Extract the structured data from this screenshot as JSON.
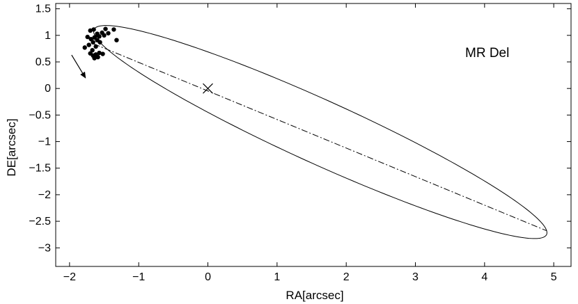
{
  "chart_data": {
    "type": "scatter",
    "annotation": "MR Del",
    "xlabel": "RA[arcsec]",
    "ylabel": "DE[arcsec]",
    "xlim": [
      -2.2,
      5.25
    ],
    "ylim": [
      -3.35,
      1.6
    ],
    "x_ticks": [
      -2,
      -1,
      0,
      1,
      2,
      3,
      4,
      5
    ],
    "x_tick_labels": [
      "−2",
      "−1",
      "0",
      "1",
      "2",
      "3",
      "4",
      "5"
    ],
    "y_ticks": [
      1.5,
      1,
      0.5,
      0,
      -0.5,
      -1,
      -1.5,
      -2,
      -2.5,
      -3
    ],
    "y_tick_labels": [
      "1.5",
      "1",
      "0.5",
      "0",
      "−0.5",
      "−1",
      "−1.5",
      "−2",
      "−2.5",
      "−3"
    ],
    "grid": false,
    "legend": "none",
    "observations": [
      [
        -1.7,
        1.09
      ],
      [
        -1.65,
        1.11
      ],
      [
        -1.6,
        1.03
      ],
      [
        -1.57,
        0.98
      ],
      [
        -1.53,
        1.05
      ],
      [
        -1.48,
        1.12
      ],
      [
        -1.44,
        1.04
      ],
      [
        -1.36,
        1.11
      ],
      [
        -1.32,
        0.91
      ],
      [
        -1.74,
        0.97
      ],
      [
        -1.69,
        0.93
      ],
      [
        -1.64,
        0.96
      ],
      [
        -1.6,
        0.91
      ],
      [
        -1.56,
        0.87
      ],
      [
        -1.66,
        0.87
      ],
      [
        -1.78,
        0.77
      ],
      [
        -1.72,
        0.82
      ],
      [
        -1.62,
        0.79
      ],
      [
        -1.67,
        0.72
      ],
      [
        -1.7,
        0.66
      ],
      [
        -1.66,
        0.62
      ],
      [
        -1.62,
        0.64
      ],
      [
        -1.64,
        0.57
      ],
      [
        -1.59,
        0.59
      ],
      [
        -1.57,
        0.67
      ],
      [
        -1.52,
        0.65
      ],
      [
        -1.6,
        1.0
      ],
      [
        -1.5,
        1.0
      ]
    ],
    "orbit_ellipse": {
      "center": [
        1.625,
        -0.82
      ],
      "semi_major_axis": 3.8,
      "semi_minor_axis": 0.565,
      "orientation_deg": -30.8
    },
    "line_of_apsides": {
      "from": [
        -1.65,
        0.84
      ],
      "to": [
        4.9,
        -2.68
      ]
    },
    "primary_marker": [
      0,
      0
    ],
    "motion_arrow": {
      "from": [
        -1.97,
        0.63
      ],
      "to": [
        -1.77,
        0.2
      ]
    }
  }
}
